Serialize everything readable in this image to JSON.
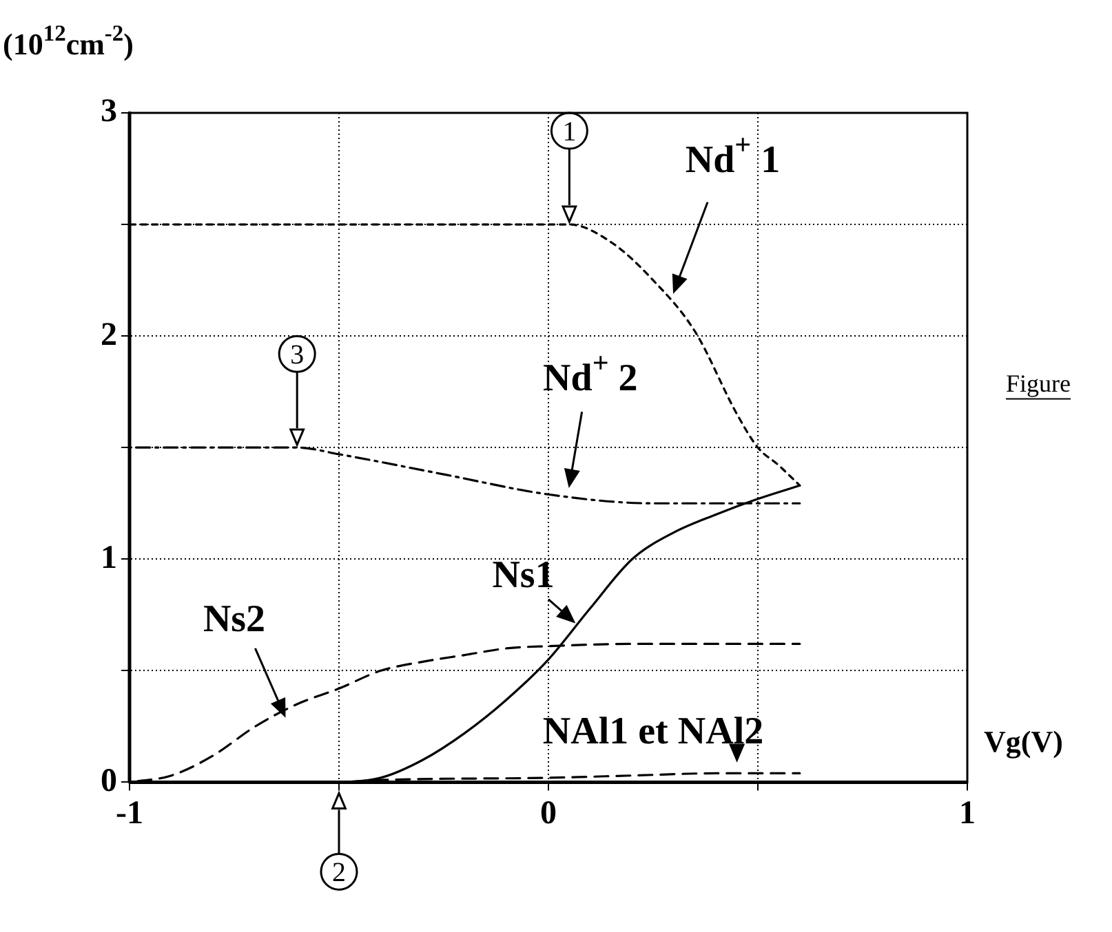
{
  "chart_data": {
    "type": "line",
    "ylabel": "(10$^{12}$cm$^{-2}$)",
    "xlabel": "Vg(V)",
    "xlim": [
      -1,
      1
    ],
    "xticks": [
      -1,
      {
        "value": -0.5,
        "label": null
      },
      0,
      {
        "value": 0.5,
        "label": null
      },
      1
    ],
    "ylim": [
      0,
      3
    ],
    "yticks": [
      0,
      {
        "value": 0.5,
        "label": null
      },
      1,
      {
        "value": 1.5,
        "label": null
      },
      2,
      {
        "value": 2.5,
        "label": null
      },
      3
    ],
    "grid": true,
    "legend": false,
    "marker": "none",
    "series": [
      {
        "name": "Nd$^{+}$ 1",
        "color": "#000000",
        "line_style": "dotted",
        "x": [
          -1,
          -0.5,
          0,
          0.05,
          0.15,
          0.25,
          0.35,
          0.45,
          0.5,
          0.55,
          0.6
        ],
        "values": [
          2.5,
          2.5,
          2.5,
          2.5,
          2.42,
          2.25,
          2.02,
          1.65,
          1.5,
          1.42,
          1.33
        ]
      },
      {
        "name": "Nd$^{+}$ 2",
        "color": "#000000",
        "line_style": "dashdot",
        "x": [
          -1,
          -0.6,
          -0.5,
          -0.25,
          0,
          0.25,
          0.5,
          0.6
        ],
        "values": [
          1.5,
          1.5,
          1.47,
          1.38,
          1.29,
          1.25,
          1.25,
          1.25
        ]
      },
      {
        "name": "Ns1",
        "color": "#000000",
        "line_style": "solid",
        "x": [
          -1,
          -0.5,
          -0.4,
          -0.3,
          -0.2,
          -0.1,
          0,
          0.1,
          0.2,
          0.3,
          0.4,
          0.5,
          0.6
        ],
        "values": [
          0,
          0,
          0.02,
          0.1,
          0.22,
          0.37,
          0.55,
          0.78,
          1.0,
          1.12,
          1.2,
          1.27,
          1.33
        ]
      },
      {
        "name": "Ns2",
        "color": "#000000",
        "line_style": "dashed",
        "x": [
          -1,
          -0.9,
          -0.8,
          -0.7,
          -0.6,
          -0.5,
          -0.4,
          -0.3,
          -0.2,
          -0.1,
          0,
          0.2,
          0.6
        ],
        "values": [
          0,
          0.03,
          0.12,
          0.25,
          0.35,
          0.42,
          0.5,
          0.54,
          0.57,
          0.6,
          0.61,
          0.62,
          0.62
        ]
      },
      {
        "name": "NAl1 et NAl2",
        "color": "#000000",
        "line_style": "dashed",
        "x": [
          -0.5,
          -0.4,
          0,
          0.2,
          0.4,
          0.6
        ],
        "values": [
          0,
          0.01,
          0.02,
          0.03,
          0.04,
          0.04
        ]
      }
    ],
    "annotations": [
      {
        "text": "1",
        "x": 0.05,
        "y": 2.5
      },
      {
        "text": "2",
        "x": -0.5,
        "y": 0
      },
      {
        "text": "3",
        "x": -0.6,
        "y": 1.5
      },
      "Figure"
    ]
  }
}
